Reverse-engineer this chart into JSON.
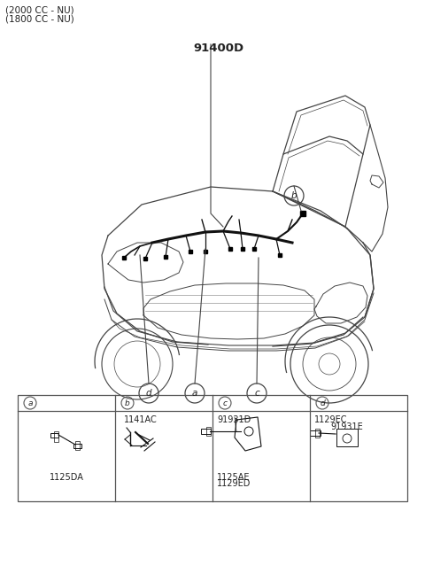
{
  "title_lines": [
    "(2000 CC - NU)",
    "(1800 CC - NU)"
  ],
  "main_label": "91400D",
  "bg_color": "#ffffff",
  "line_color": "#444444",
  "text_color": "#222222",
  "table_border_color": "#555555",
  "table_parts_a": [
    "1125DA"
  ],
  "table_parts_b": [
    "1141AC"
  ],
  "table_parts_c": [
    "91931D",
    "1125AE",
    "1129ED"
  ],
  "table_parts_d": [
    "1129EC",
    "91931E"
  ]
}
